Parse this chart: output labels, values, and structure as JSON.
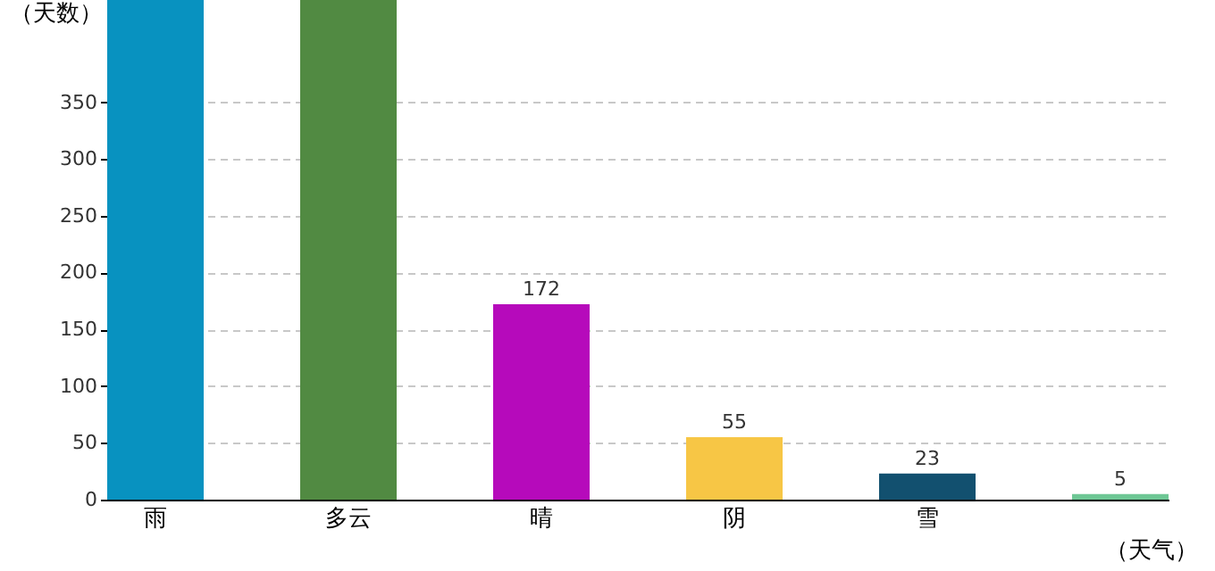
{
  "chart_data": {
    "type": "bar",
    "categories": [
      "雨",
      "多云",
      "晴",
      "阴",
      "雪",
      null
    ],
    "values": [
      440,
      440,
      172,
      55,
      23,
      5
    ],
    "colors": [
      "#0892c0",
      "#518a42",
      "#b60abb",
      "#f7c645",
      "#12506f",
      "#6ec795"
    ],
    "value_labels": [
      null,
      null,
      "172",
      "55",
      "23",
      "5"
    ],
    "xlabel": "（天气）",
    "ylabel": "（天数）",
    "ylim": [
      0,
      440
    ],
    "yticks": [
      0,
      50,
      100,
      150,
      200,
      250,
      300,
      350
    ],
    "grid": "y"
  }
}
